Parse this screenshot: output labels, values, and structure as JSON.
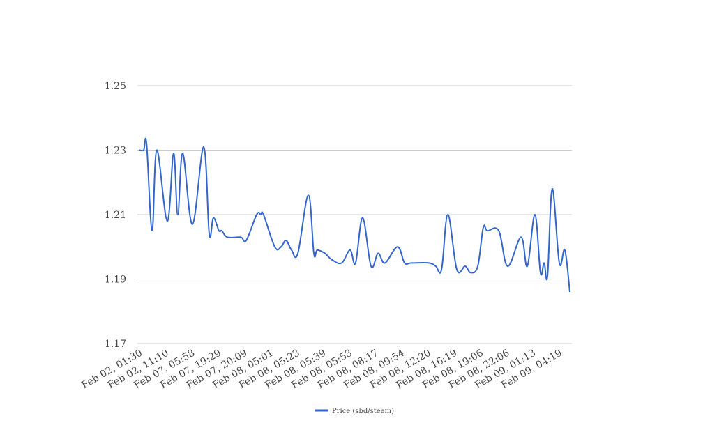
{
  "chart_data": {
    "type": "line",
    "title": "",
    "xlabel": "",
    "ylabel": "",
    "ylim": [
      1.17,
      1.25
    ],
    "yticks": [
      "1.17",
      "1.19",
      "1.21",
      "1.23",
      "1.25"
    ],
    "grid": true,
    "legend_position": "bottom",
    "categories": [
      "Feb 02, 01:30",
      "Feb 02, 11:10",
      "Feb 07, 05:58",
      "Feb 07, 19:29",
      "Feb 07, 20:09",
      "Feb 08, 05:01",
      "Feb 08, 05:23",
      "Feb 08, 05:39",
      "Feb 08, 05:53",
      "Feb 08, 08:17",
      "Feb 08, 09:54",
      "Feb 08, 12:20",
      "Feb 08, 16:19",
      "Feb 08, 19:06",
      "Feb 08, 22:06",
      "Feb 09, 01:13",
      "Feb 09, 04:19"
    ],
    "series": [
      {
        "name": "Price (sbd/steem)",
        "color": "#3366cc",
        "x": [
          0,
          0.16,
          0.27,
          0.48,
          0.66,
          1.06,
          1.3,
          1.46,
          1.65,
          2.02,
          2.45,
          2.66,
          2.82,
          3.03,
          3.14,
          3.35,
          3.86,
          4.07,
          4.47,
          4.63,
          4.73,
          5.16,
          5.4,
          5.59,
          5.8,
          6.04,
          6.44,
          6.65,
          6.78,
          7.07,
          7.34,
          7.71,
          8.03,
          8.24,
          8.51,
          8.83,
          9.1,
          9.36,
          9.84,
          10.11,
          10.37,
          11.04,
          11.3,
          11.52,
          11.76,
          12.1,
          12.42,
          12.63,
          12.9,
          13.11,
          13.27,
          13.7,
          14.04,
          14.55,
          14.79,
          15.08,
          15.29,
          15.43,
          15.56,
          15.74,
          16.01,
          16.22,
          16.41
        ],
        "values": [
          1.23,
          1.23,
          1.232,
          1.205,
          1.23,
          1.208,
          1.229,
          1.21,
          1.229,
          1.207,
          1.231,
          1.204,
          1.209,
          1.205,
          1.205,
          1.203,
          1.203,
          1.202,
          1.21,
          1.21,
          1.21,
          1.2,
          1.2,
          1.202,
          1.199,
          1.198,
          1.216,
          1.198,
          1.199,
          1.198,
          1.196,
          1.195,
          1.199,
          1.195,
          1.209,
          1.194,
          1.198,
          1.195,
          1.2,
          1.195,
          1.195,
          1.195,
          1.194,
          1.193,
          1.21,
          1.193,
          1.194,
          1.192,
          1.194,
          1.206,
          1.205,
          1.205,
          1.194,
          1.203,
          1.194,
          1.21,
          1.192,
          1.195,
          1.191,
          1.218,
          1.195,
          1.199,
          1.186
        ]
      }
    ]
  }
}
